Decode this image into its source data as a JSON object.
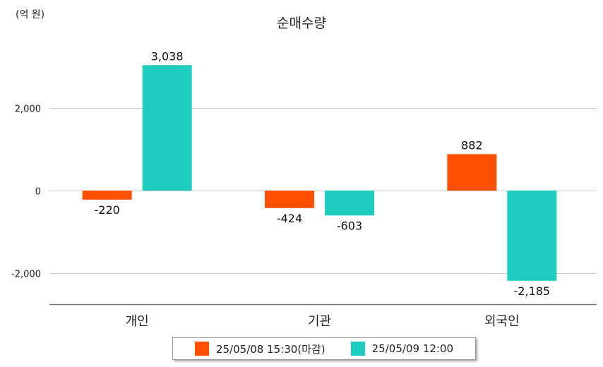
{
  "chart_data": {
    "type": "bar",
    "title": "순매수량",
    "unit": "(억 원)",
    "categories": [
      "개인",
      "기관",
      "외국인"
    ],
    "series": [
      {
        "name": "25/05/08 15:30(마감)",
        "color": "#ff5000",
        "values": [
          -220,
          -424,
          882
        ],
        "labels": [
          "-220",
          "-424",
          "882"
        ]
      },
      {
        "name": "25/05/09 12:00",
        "color": "#1ecdbe",
        "values": [
          3038,
          -603,
          -2185
        ],
        "labels": [
          "3,038",
          "-603",
          "-2,185"
        ]
      }
    ],
    "yticks": [
      2000,
      0,
      -2000
    ],
    "ytick_labels": [
      "2,000",
      "0",
      "-2,000"
    ],
    "ylim": [
      -2750,
      3300
    ],
    "grid": true,
    "legend_position": "bottom"
  }
}
